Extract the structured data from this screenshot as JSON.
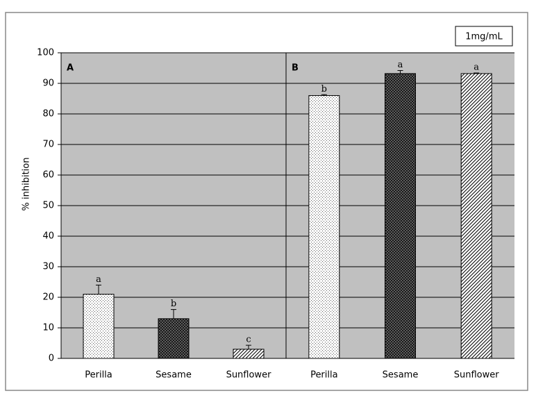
{
  "chart_data": [
    {
      "type": "bar",
      "panel": "A",
      "y_label": "% inhibition",
      "annotation": "1mg/mL",
      "categories": [
        "Perilla",
        "Sesame",
        "Sunflower"
      ],
      "values": [
        21,
        13,
        3
      ],
      "errors": [
        3,
        3,
        1.3
      ],
      "letters": [
        "a",
        "b",
        "c"
      ],
      "patterns": [
        "dots",
        "cross",
        "diagonal"
      ],
      "ylim": [
        0,
        100
      ],
      "yticks": [
        0,
        10,
        20,
        30,
        40,
        50,
        60,
        70,
        80,
        90,
        100
      ],
      "grid": true
    },
    {
      "type": "bar",
      "panel": "B",
      "categories": [
        "Perilla",
        "Sesame",
        "Sunflower"
      ],
      "values": [
        86,
        93.2,
        93.2
      ],
      "errors": [
        0.3,
        1,
        0.2
      ],
      "letters": [
        "b",
        "a",
        "a"
      ],
      "patterns": [
        "dots",
        "cross",
        "diagonal"
      ],
      "ylim": [
        0,
        100
      ],
      "yticks": [
        0,
        10,
        20,
        30,
        40,
        50,
        60,
        70,
        80,
        90,
        100
      ],
      "grid": true
    }
  ]
}
